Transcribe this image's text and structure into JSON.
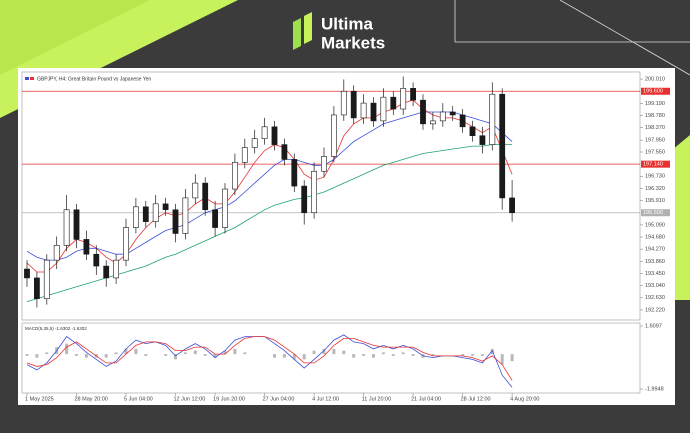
{
  "brand": {
    "line1": "Ultima",
    "line2": "Markets"
  },
  "chart_data": {
    "type": "candlestick",
    "title": "GBPJPY, H4:  Great Britain Pound vs Japanese Yen",
    "categories": [
      "1 May 2025",
      null,
      null,
      null,
      null,
      "28 May 20:00",
      null,
      null,
      null,
      null,
      "5 Jun 04:00",
      null,
      null,
      null,
      null,
      "12 Jun 12:00",
      null,
      null,
      null,
      "19 Jun 20:00",
      null,
      null,
      null,
      null,
      "27 Jun 04:00",
      null,
      null,
      null,
      null,
      "4 Jul 12:00",
      null,
      null,
      null,
      null,
      "11 Jul 20:00",
      null,
      null,
      null,
      null,
      "21 Jul 04:00",
      null,
      null,
      null,
      null,
      "28 Jul 12:00",
      null,
      null,
      null,
      null,
      "4 Aug 20:00"
    ],
    "open": [
      193.6,
      193.3,
      192.6,
      193.9,
      194.4,
      195.6,
      194.6,
      194.1,
      193.7,
      193.3,
      193.9,
      195.0,
      195.7,
      195.2,
      195.8,
      195.6,
      194.8,
      196.0,
      196.5,
      195.6,
      195.0,
      196.3,
      197.2,
      197.7,
      198.0,
      198.4,
      197.8,
      197.3,
      196.4,
      195.5,
      196.9,
      197.4,
      198.8,
      199.6,
      198.7,
      199.2,
      198.6,
      199.4,
      199.0,
      199.7,
      199.3,
      198.5,
      198.6,
      198.9,
      198.8,
      198.4,
      198.1,
      197.8,
      199.5,
      196.0
    ],
    "high": [
      193.9,
      193.5,
      194.1,
      194.7,
      196.1,
      195.8,
      194.9,
      194.4,
      193.9,
      194.1,
      195.3,
      196.0,
      195.9,
      196.1,
      196.0,
      195.8,
      196.3,
      196.8,
      196.7,
      195.9,
      196.5,
      197.5,
      198.0,
      198.3,
      198.7,
      198.6,
      198.0,
      197.5,
      196.6,
      197.2,
      197.7,
      199.1,
      200.0,
      199.8,
      199.5,
      199.4,
      199.7,
      199.6,
      200.1,
      199.9,
      199.5,
      198.9,
      199.2,
      199.1,
      199.0,
      198.6,
      198.4,
      199.9,
      199.7,
      196.6
    ],
    "low": [
      193.0,
      192.3,
      192.4,
      193.6,
      194.2,
      194.3,
      193.9,
      193.4,
      193.0,
      193.1,
      193.7,
      194.8,
      195.0,
      195.0,
      195.4,
      194.5,
      194.6,
      195.8,
      195.4,
      194.7,
      194.8,
      196.1,
      197.0,
      197.5,
      197.8,
      197.6,
      197.1,
      196.2,
      195.1,
      195.3,
      196.7,
      197.2,
      198.6,
      198.5,
      198.5,
      198.4,
      198.4,
      198.8,
      198.8,
      199.1,
      198.3,
      198.3,
      198.4,
      198.6,
      198.2,
      197.9,
      197.5,
      197.6,
      195.6,
      195.2
    ],
    "close": [
      193.3,
      192.6,
      193.9,
      194.4,
      195.6,
      194.6,
      194.1,
      193.7,
      193.3,
      193.9,
      195.0,
      195.7,
      195.2,
      195.8,
      195.6,
      194.8,
      196.0,
      196.5,
      195.6,
      195.0,
      196.3,
      197.2,
      197.7,
      198.0,
      198.4,
      197.8,
      197.3,
      196.4,
      195.5,
      196.9,
      197.4,
      198.8,
      199.6,
      198.7,
      199.2,
      198.6,
      199.4,
      199.0,
      199.7,
      199.3,
      198.5,
      198.6,
      198.9,
      198.8,
      198.4,
      198.1,
      197.8,
      199.5,
      196.0,
      195.5
    ],
    "up_color": "#ffffff",
    "down_color": "#1a1a1a",
    "overlays": [
      {
        "color": "#e8302f",
        "values": [
          193.8,
          193.5,
          193.5,
          193.8,
          194.3,
          194.6,
          194.5,
          194.3,
          194.0,
          193.8,
          194.1,
          194.6,
          195.0,
          195.3,
          195.5,
          195.4,
          195.5,
          195.8,
          196.0,
          195.8,
          195.8,
          196.2,
          196.7,
          197.2,
          197.6,
          197.8,
          197.7,
          197.3,
          196.8,
          196.6,
          196.7,
          197.3,
          198.1,
          198.5,
          198.7,
          198.7,
          198.9,
          199.0,
          199.2,
          199.3,
          199.0,
          198.8,
          198.7,
          198.7,
          198.6,
          198.4,
          198.2,
          198.4,
          197.6,
          196.8
        ]
      },
      {
        "color": "#3a4fd8",
        "values": [
          194.2,
          194.0,
          193.9,
          193.9,
          194.0,
          194.2,
          194.3,
          194.3,
          194.2,
          194.1,
          194.1,
          194.3,
          194.5,
          194.7,
          194.9,
          195.0,
          195.1,
          195.3,
          195.5,
          195.6,
          195.7,
          195.9,
          196.2,
          196.5,
          196.8,
          197.1,
          197.3,
          197.3,
          197.2,
          197.1,
          197.1,
          197.3,
          197.6,
          197.9,
          198.1,
          198.3,
          198.5,
          198.6,
          198.7,
          198.8,
          198.9,
          198.9,
          198.9,
          198.9,
          198.8,
          198.7,
          198.6,
          198.5,
          198.2,
          197.9
        ]
      },
      {
        "color": "#1fa36a",
        "values": [
          192.5,
          192.6,
          192.7,
          192.8,
          192.9,
          193.0,
          193.1,
          193.2,
          193.3,
          193.4,
          193.5,
          193.6,
          193.7,
          193.85,
          194.0,
          194.1,
          194.25,
          194.4,
          194.55,
          194.7,
          194.85,
          195.0,
          195.2,
          195.4,
          195.6,
          195.75,
          195.85,
          195.95,
          196.0,
          196.1,
          196.2,
          196.35,
          196.5,
          196.65,
          196.8,
          196.95,
          197.1,
          197.2,
          197.3,
          197.4,
          197.5,
          197.55,
          197.6,
          197.65,
          197.7,
          197.75,
          197.75,
          197.8,
          197.8,
          197.8
        ]
      }
    ],
    "ylim": [
      191.88,
      200.25
    ],
    "yticks": [
      {
        "value": 200.01,
        "label": "200.010"
      },
      {
        "value": 199.19,
        "label": "199.190"
      },
      {
        "value": 198.78,
        "label": "198.780"
      },
      {
        "value": 198.37,
        "label": "198.370"
      },
      {
        "value": 197.95,
        "label": "197.950"
      },
      {
        "value": 197.55,
        "label": "197.550"
      },
      {
        "value": 196.73,
        "label": "196.730"
      },
      {
        "value": 196.32,
        "label": "196.320"
      },
      {
        "value": 195.91,
        "label": "195.910"
      },
      {
        "value": 195.09,
        "label": "195.090"
      },
      {
        "value": 194.68,
        "label": "194.680"
      },
      {
        "value": 194.27,
        "label": "194.270"
      },
      {
        "value": 193.86,
        "label": "193.860"
      },
      {
        "value": 193.45,
        "label": "193.450"
      },
      {
        "value": 193.04,
        "label": "193.040"
      },
      {
        "value": 192.63,
        "label": "192.630"
      },
      {
        "value": 192.22,
        "label": "192.220"
      }
    ],
    "levels": [
      {
        "value": 199.6,
        "label": "199.600",
        "color": "#e8302f"
      },
      {
        "value": 197.14,
        "label": "197.140",
        "color": "#e8302f"
      },
      {
        "value": 195.5,
        "label": "195.500",
        "color": "#b0b0b0"
      }
    ],
    "indicator": {
      "type": "macd",
      "label": "MACD(5,35,5) -1.6302 -1.6302",
      "ylim": [
        -2.22,
        1.78
      ],
      "yticks": [
        1.6097,
        -1.9948
      ],
      "histogram": [
        -0.1,
        -0.2,
        0.1,
        0.4,
        0.6,
        -0.1,
        -0.2,
        -0.2,
        -0.2,
        0.1,
        0.3,
        0.3,
        -0.1,
        0.0,
        -0.1,
        -0.3,
        0.1,
        0.2,
        -0.1,
        -0.2,
        0.2,
        0.3,
        0.1,
        0.0,
        0.0,
        -0.2,
        -0.2,
        -0.3,
        -0.3,
        0.2,
        0.3,
        0.3,
        0.2,
        -0.2,
        -0.1,
        -0.2,
        0.1,
        -0.1,
        0.1,
        -0.1,
        -0.2,
        -0.1,
        0.0,
        0.0,
        -0.1,
        -0.1,
        -0.1,
        0.3,
        -0.6,
        -0.4
      ],
      "histogram_color": "#b8b8b8",
      "lines": [
        {
          "color": "#3a4fd8",
          "values": [
            -0.6,
            -0.9,
            -0.5,
            0.2,
            1.0,
            0.6,
            0.1,
            -0.3,
            -0.7,
            -0.4,
            0.3,
            0.8,
            0.6,
            0.7,
            0.5,
            -0.1,
            0.3,
            0.6,
            0.3,
            -0.2,
            0.2,
            0.8,
            1.0,
            1.0,
            1.0,
            0.6,
            0.2,
            -0.3,
            -0.8,
            -0.3,
            0.2,
            0.8,
            1.1,
            0.7,
            0.6,
            0.3,
            0.5,
            0.3,
            0.5,
            0.3,
            -0.1,
            -0.2,
            -0.1,
            -0.1,
            -0.2,
            -0.3,
            -0.5,
            0.2,
            -1.2,
            -1.9
          ]
        },
        {
          "color": "#e8302f",
          "values": [
            -0.5,
            -0.7,
            -0.6,
            -0.2,
            0.4,
            0.7,
            0.3,
            -0.1,
            -0.5,
            -0.5,
            0.0,
            0.5,
            0.7,
            0.7,
            0.6,
            0.2,
            0.2,
            0.4,
            0.4,
            0.0,
            0.0,
            0.5,
            0.9,
            1.0,
            1.0,
            0.8,
            0.4,
            0.0,
            -0.5,
            -0.5,
            -0.1,
            0.5,
            0.9,
            0.9,
            0.7,
            0.5,
            0.4,
            0.4,
            0.4,
            0.4,
            0.1,
            -0.1,
            -0.1,
            -0.1,
            -0.1,
            -0.2,
            -0.4,
            -0.1,
            -0.6,
            -1.5
          ]
        }
      ]
    }
  }
}
